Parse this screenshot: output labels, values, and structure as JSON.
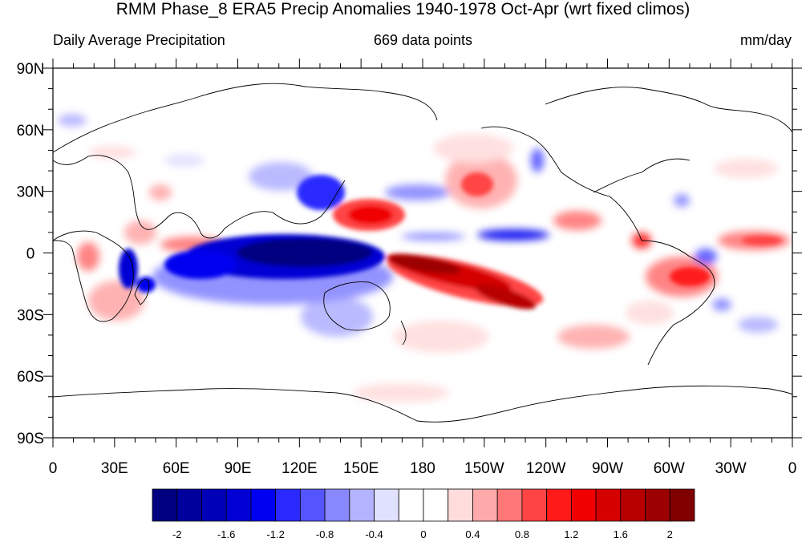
{
  "header": {
    "title": "RMM Phase_8 ERA5 Precip Anomalies 1940-1978 Oct-Apr (wrt fixed climos)",
    "left_label": "Daily Average Precipitation",
    "center_label": "669 data points",
    "right_label": "mm/day"
  },
  "map": {
    "lat_labels": [
      "90N",
      "60N",
      "30N",
      "0",
      "30S",
      "60S",
      "90S"
    ],
    "lon_labels": [
      "0",
      "30E",
      "60E",
      "90E",
      "120E",
      "150E",
      "180",
      "150W",
      "120W",
      "90W",
      "60W",
      "30W",
      "0"
    ]
  },
  "colorbar": {
    "colors": [
      "#000080",
      "#00009d",
      "#0000b8",
      "#0000d5",
      "#0000f0",
      "#2a2aff",
      "#5555ff",
      "#8888ff",
      "#b3b3ff",
      "#e0e0ff",
      "#ffffff",
      "#ffffff",
      "#ffdddd",
      "#ffaaaa",
      "#ff7777",
      "#ff4444",
      "#ff1a1a",
      "#f00000",
      "#d50000",
      "#b80000",
      "#9d0000",
      "#800000"
    ],
    "tick_labels": [
      "-2",
      "-1.6",
      "-1.2",
      "-0.8",
      "-0.4",
      "0",
      "0.4",
      "0.8",
      "1.2",
      "1.6",
      "2"
    ]
  }
}
